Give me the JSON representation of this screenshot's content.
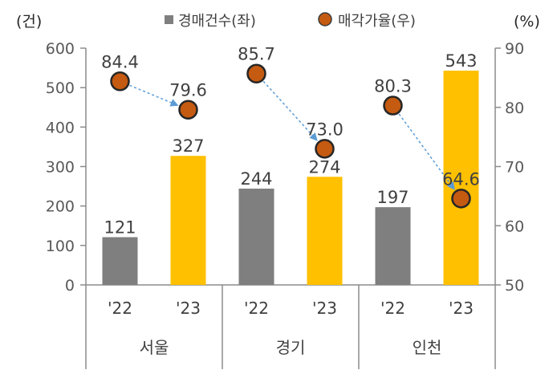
{
  "chart_data": {
    "type": "bar",
    "left_unit": "(건)",
    "right_unit": "(%)",
    "legend": [
      {
        "name": "경매건수(좌)",
        "marker": "square",
        "color": "#7f7f7f"
      },
      {
        "name": "매각가율(우)",
        "marker": "circle",
        "color": "#c55a11"
      }
    ],
    "groups": [
      "서울",
      "경기",
      "인천"
    ],
    "categories": [
      "'22",
      "'23",
      "'22",
      "'23",
      "'22",
      "'23"
    ],
    "left_axis": {
      "ylim": [
        0,
        600
      ],
      "ticks": [
        "0",
        "100",
        "200",
        "300",
        "400",
        "500",
        "600"
      ]
    },
    "right_axis": {
      "ylim": [
        50,
        90
      ],
      "ticks": [
        "50",
        "60",
        "70",
        "80",
        "90"
      ]
    },
    "series": [
      {
        "name": "경매건수(좌)",
        "axis": "left",
        "values": [
          121,
          327,
          244,
          274,
          197,
          543
        ],
        "labels": [
          "121",
          "327",
          "244",
          "274",
          "197",
          "543"
        ],
        "colors": [
          "#7f7f7f",
          "#ffc000",
          "#7f7f7f",
          "#ffc000",
          "#7f7f7f",
          "#ffc000"
        ]
      },
      {
        "name": "매각가율(우)",
        "axis": "right",
        "values": [
          84.4,
          79.6,
          85.7,
          73.0,
          80.3,
          64.6
        ],
        "labels": [
          "84.4",
          "79.6",
          "85.7",
          "73.0",
          "80.3",
          "64.6"
        ],
        "color": "#c55a11"
      }
    ],
    "arrow_color": "#5b9bd5",
    "grid": false
  }
}
